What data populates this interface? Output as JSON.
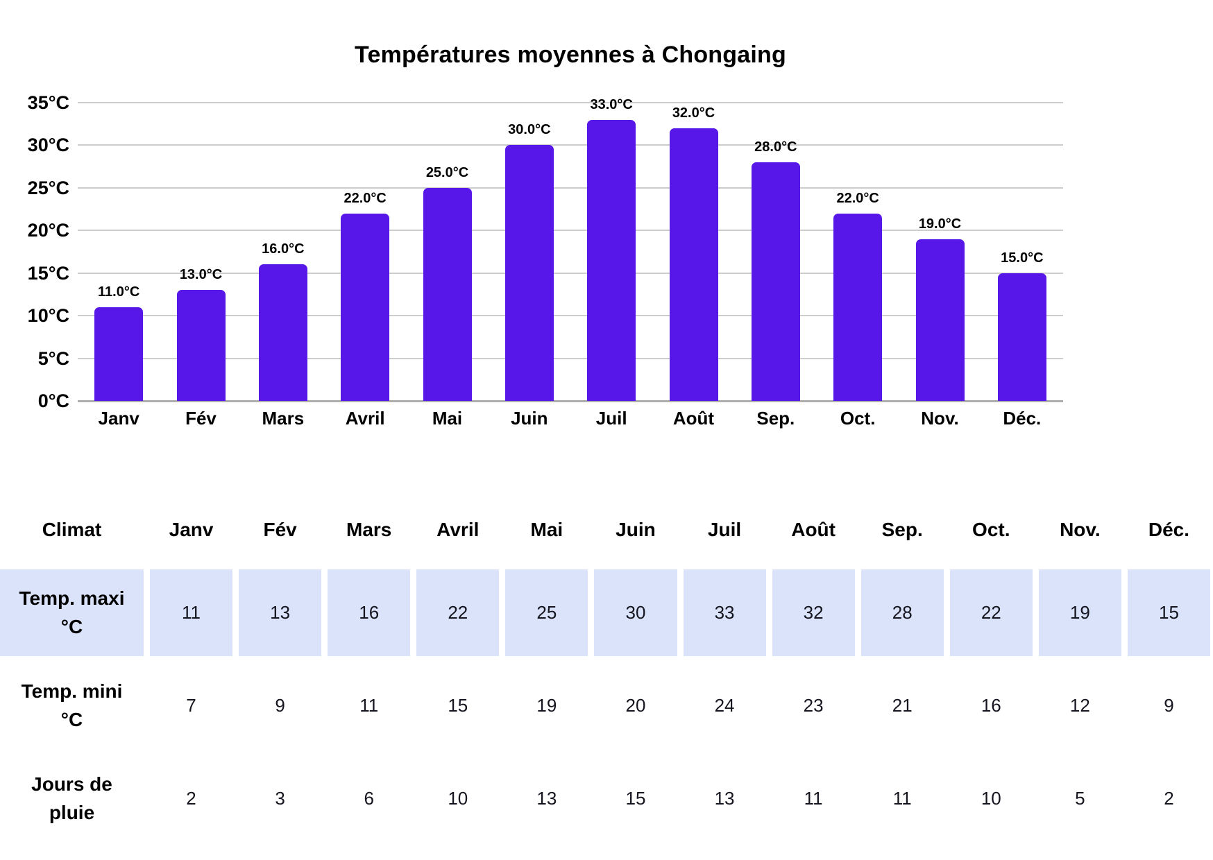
{
  "title": "Températures moyennes à Chongaing",
  "months": [
    "Janv",
    "Fév",
    "Mars",
    "Avril",
    "Mai",
    "Juin",
    "Juil",
    "Août",
    "Sep.",
    "Oct.",
    "Nov.",
    "Déc."
  ],
  "chart_data": {
    "type": "bar",
    "title": "Températures moyennes à Chongaing",
    "categories": [
      "Janv",
      "Fév",
      "Mars",
      "Avril",
      "Mai",
      "Juin",
      "Juil",
      "Août",
      "Sep.",
      "Oct.",
      "Nov.",
      "Déc."
    ],
    "values": [
      11,
      13,
      16,
      22,
      25,
      30,
      33,
      32,
      28,
      22,
      19,
      15
    ],
    "bar_labels": [
      "11.0°C",
      "13.0°C",
      "16.0°C",
      "22.0°C",
      "25.0°C",
      "30.0°C",
      "33.0°C",
      "32.0°C",
      "28.0°C",
      "22.0°C",
      "19.0°C",
      "15.0°C"
    ],
    "ytick_labels": [
      "0°C",
      "5°C",
      "10°C",
      "15°C",
      "20°C",
      "25°C",
      "30°C",
      "35°C"
    ],
    "ylim": [
      0,
      35
    ],
    "ytick_step": 5,
    "xlabel": "",
    "ylabel": "",
    "grid": true,
    "legend": "none",
    "bar_color": "#5617e8"
  },
  "table": {
    "corner_label": "Climat",
    "columns": [
      "Janv",
      "Fév",
      "Mars",
      "Avril",
      "Mai",
      "Juin",
      "Juil",
      "Août",
      "Sep.",
      "Oct.",
      "Nov.",
      "Déc."
    ],
    "rows": [
      {
        "label": "Temp. maxi\n°C",
        "values": [
          11,
          13,
          16,
          22,
          25,
          30,
          33,
          32,
          28,
          22,
          19,
          15
        ],
        "highlighted": true
      },
      {
        "label": "Temp. mini\n°C",
        "values": [
          7,
          9,
          11,
          15,
          19,
          20,
          24,
          23,
          21,
          16,
          12,
          9
        ],
        "highlighted": false
      },
      {
        "label": "Jours de\npluie",
        "values": [
          2,
          3,
          6,
          10,
          13,
          15,
          13,
          11,
          11,
          10,
          5,
          2
        ],
        "highlighted": false
      }
    ],
    "highlight_color": "#dbe3fb"
  },
  "colors": {
    "bar": "#5617e8",
    "gridline": "#cdcdcd",
    "axis_line": "#aeaeae",
    "highlight_cell": "#dbe3fb",
    "text": "#000000"
  }
}
